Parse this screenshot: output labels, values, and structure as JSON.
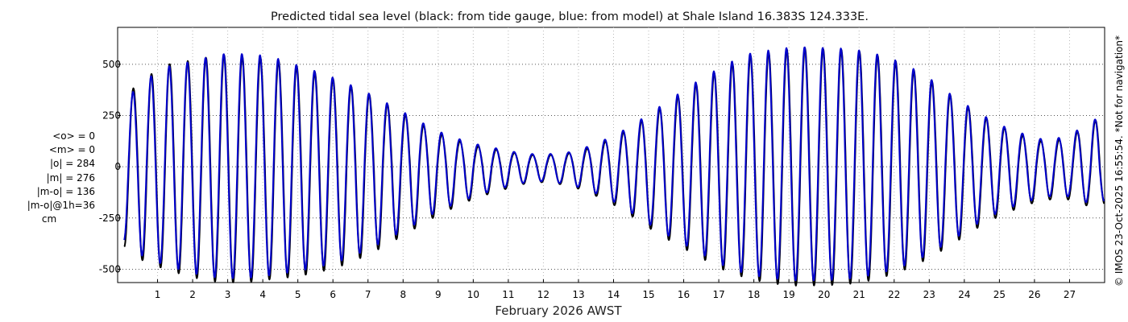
{
  "chart_data": {
    "type": "line",
    "title": "Predicted tidal sea level (black: from tide gauge, blue: from model) at Shale Island 16.383S 124.333E.",
    "xlabel": "February 2026 AWST",
    "ylabel": "",
    "x_unit": "day of month",
    "xlim": [
      0,
      28
    ],
    "ylim": [
      -565,
      680
    ],
    "x_ticks": [
      1,
      2,
      3,
      4,
      5,
      6,
      7,
      8,
      9,
      10,
      11,
      12,
      13,
      14,
      15,
      16,
      17,
      18,
      19,
      20,
      21,
      22,
      23,
      24,
      25,
      26,
      27
    ],
    "x_tick_labels": [
      "1",
      "2",
      "3",
      "4",
      "5",
      "6",
      "7",
      "8",
      "9",
      "10",
      "11",
      "12",
      "13",
      "14",
      "15",
      "16",
      "17",
      "18",
      "19",
      "20",
      "21",
      "22",
      "23",
      "24",
      "25",
      "26",
      "27"
    ],
    "y_ticks": [
      -500,
      -250,
      0,
      250,
      500
    ],
    "y_tick_labels": [
      "-500",
      "-250",
      "0",
      "250",
      "500"
    ],
    "grid": true,
    "period_days": 0.5175,
    "series": [
      {
        "name": "tide gauge",
        "color": "#000000",
        "phase_start": 0.5,
        "envelope": [
          {
            "x": 0.05,
            "max": 340,
            "min": -390
          },
          {
            "x": 0.6,
            "max": 430,
            "min": -460
          },
          {
            "x": 1.3,
            "max": 500,
            "min": -505
          },
          {
            "x": 2.0,
            "max": 520,
            "min": -540
          },
          {
            "x": 2.8,
            "max": 545,
            "min": -565
          },
          {
            "x": 3.5,
            "max": 540,
            "min": -565
          },
          {
            "x": 4.2,
            "max": 530,
            "min": -550
          },
          {
            "x": 5.0,
            "max": 490,
            "min": -535
          },
          {
            "x": 5.7,
            "max": 450,
            "min": -510
          },
          {
            "x": 6.3,
            "max": 410,
            "min": -480
          },
          {
            "x": 7.0,
            "max": 355,
            "min": -430
          },
          {
            "x": 7.6,
            "max": 300,
            "min": -375
          },
          {
            "x": 8.3,
            "max": 230,
            "min": -305
          },
          {
            "x": 8.9,
            "max": 170,
            "min": -245
          },
          {
            "x": 9.5,
            "max": 130,
            "min": -195
          },
          {
            "x": 10.1,
            "max": 100,
            "min": -150
          },
          {
            "x": 10.8,
            "max": 80,
            "min": -115
          },
          {
            "x": 11.4,
            "max": 60,
            "min": -85
          },
          {
            "x": 12.0,
            "max": 55,
            "min": -75
          },
          {
            "x": 12.7,
            "max": 65,
            "min": -90
          },
          {
            "x": 13.3,
            "max": 90,
            "min": -125
          },
          {
            "x": 14.0,
            "max": 140,
            "min": -185
          },
          {
            "x": 14.6,
            "max": 200,
            "min": -250
          },
          {
            "x": 15.2,
            "max": 270,
            "min": -320
          },
          {
            "x": 15.8,
            "max": 340,
            "min": -380
          },
          {
            "x": 16.5,
            "max": 420,
            "min": -445
          },
          {
            "x": 17.1,
            "max": 480,
            "min": -500
          },
          {
            "x": 17.8,
            "max": 540,
            "min": -545
          },
          {
            "x": 18.5,
            "max": 560,
            "min": -570
          },
          {
            "x": 19.2,
            "max": 580,
            "min": -580
          },
          {
            "x": 20.0,
            "max": 575,
            "min": -580
          },
          {
            "x": 20.8,
            "max": 570,
            "min": -570
          },
          {
            "x": 21.5,
            "max": 545,
            "min": -550
          },
          {
            "x": 22.2,
            "max": 505,
            "min": -510
          },
          {
            "x": 22.9,
            "max": 440,
            "min": -455
          },
          {
            "x": 23.6,
            "max": 350,
            "min": -385
          },
          {
            "x": 24.3,
            "max": 270,
            "min": -305
          },
          {
            "x": 25.0,
            "max": 200,
            "min": -240
          },
          {
            "x": 25.7,
            "max": 150,
            "min": -190
          },
          {
            "x": 26.3,
            "max": 120,
            "min": -160
          },
          {
            "x": 27.0,
            "max": 140,
            "min": -160
          },
          {
            "x": 27.5,
            "max": 210,
            "min": -190
          },
          {
            "x": 28.0,
            "max": 245,
            "min": -180
          }
        ]
      },
      {
        "name": "model",
        "color": "#0000cc",
        "phase_start": 0.52,
        "envelope": [
          {
            "x": 0.05,
            "max": 320,
            "min": -360
          },
          {
            "x": 0.6,
            "max": 420,
            "min": -440
          },
          {
            "x": 1.3,
            "max": 490,
            "min": -485
          },
          {
            "x": 2.0,
            "max": 515,
            "min": -520
          },
          {
            "x": 2.8,
            "max": 550,
            "min": -545
          },
          {
            "x": 3.5,
            "max": 550,
            "min": -545
          },
          {
            "x": 4.2,
            "max": 540,
            "min": -530
          },
          {
            "x": 5.0,
            "max": 495,
            "min": -510
          },
          {
            "x": 5.7,
            "max": 455,
            "min": -485
          },
          {
            "x": 6.3,
            "max": 415,
            "min": -455
          },
          {
            "x": 7.0,
            "max": 360,
            "min": -405
          },
          {
            "x": 7.6,
            "max": 305,
            "min": -350
          },
          {
            "x": 8.3,
            "max": 240,
            "min": -285
          },
          {
            "x": 8.9,
            "max": 180,
            "min": -225
          },
          {
            "x": 9.5,
            "max": 140,
            "min": -180
          },
          {
            "x": 10.1,
            "max": 110,
            "min": -140
          },
          {
            "x": 10.8,
            "max": 85,
            "min": -105
          },
          {
            "x": 11.4,
            "max": 65,
            "min": -80
          },
          {
            "x": 12.0,
            "max": 60,
            "min": -70
          },
          {
            "x": 12.7,
            "max": 70,
            "min": -85
          },
          {
            "x": 13.3,
            "max": 100,
            "min": -115
          },
          {
            "x": 14.0,
            "max": 150,
            "min": -170
          },
          {
            "x": 14.6,
            "max": 210,
            "min": -235
          },
          {
            "x": 15.2,
            "max": 280,
            "min": -300
          },
          {
            "x": 15.8,
            "max": 350,
            "min": -360
          },
          {
            "x": 16.5,
            "max": 430,
            "min": -425
          },
          {
            "x": 17.1,
            "max": 490,
            "min": -480
          },
          {
            "x": 17.8,
            "max": 550,
            "min": -525
          },
          {
            "x": 18.5,
            "max": 570,
            "min": -545
          },
          {
            "x": 19.2,
            "max": 585,
            "min": -555
          },
          {
            "x": 20.0,
            "max": 580,
            "min": -555
          },
          {
            "x": 20.8,
            "max": 575,
            "min": -545
          },
          {
            "x": 21.5,
            "max": 550,
            "min": -525
          },
          {
            "x": 22.2,
            "max": 510,
            "min": -490
          },
          {
            "x": 22.9,
            "max": 445,
            "min": -435
          },
          {
            "x": 23.6,
            "max": 355,
            "min": -365
          },
          {
            "x": 24.3,
            "max": 275,
            "min": -285
          },
          {
            "x": 25.0,
            "max": 205,
            "min": -220
          },
          {
            "x": 25.7,
            "max": 160,
            "min": -175
          },
          {
            "x": 26.3,
            "max": 130,
            "min": -145
          },
          {
            "x": 27.0,
            "max": 150,
            "min": -145
          },
          {
            "x": 27.5,
            "max": 215,
            "min": -175
          },
          {
            "x": 28.0,
            "max": 250,
            "min": -165
          }
        ]
      }
    ],
    "stats": [
      "<o> = 0",
      "<m> = 0",
      "|o| = 284",
      "|m| = 276",
      "|m-o| = 136",
      "|m-o|@1h=36",
      "cm"
    ],
    "side_note": "© IMOS 23-Oct-2025 16:55:54. *Not for navigation*"
  }
}
